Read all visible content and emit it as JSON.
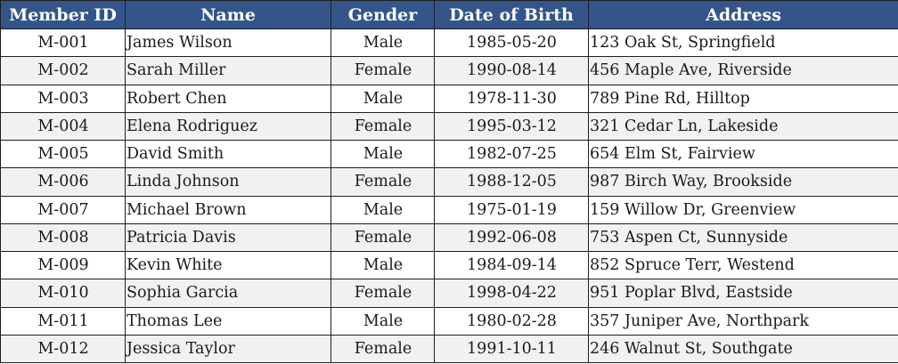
{
  "table": {
    "columns": [
      "Member ID",
      "Name",
      "Gender",
      "Date of Birth",
      "Address"
    ],
    "rows": [
      {
        "id": "M-001",
        "name": "James Wilson",
        "gender": "Male",
        "dob": "1985-05-20",
        "address": "123 Oak St, Springfield"
      },
      {
        "id": "M-002",
        "name": "Sarah Miller",
        "gender": "Female",
        "dob": "1990-08-14",
        "address": "456 Maple Ave, Riverside"
      },
      {
        "id": "M-003",
        "name": "Robert Chen",
        "gender": "Male",
        "dob": "1978-11-30",
        "address": "789 Pine Rd, Hilltop"
      },
      {
        "id": "M-004",
        "name": "Elena Rodriguez",
        "gender": "Female",
        "dob": "1995-03-12",
        "address": "321 Cedar Ln, Lakeside"
      },
      {
        "id": "M-005",
        "name": "David Smith",
        "gender": "Male",
        "dob": "1982-07-25",
        "address": "654 Elm St, Fairview"
      },
      {
        "id": "M-006",
        "name": "Linda Johnson",
        "gender": "Female",
        "dob": "1988-12-05",
        "address": "987 Birch Way, Brookside"
      },
      {
        "id": "M-007",
        "name": "Michael Brown",
        "gender": "Male",
        "dob": "1975-01-19",
        "address": "159 Willow Dr, Greenview"
      },
      {
        "id": "M-008",
        "name": "Patricia Davis",
        "gender": "Female",
        "dob": "1992-06-08",
        "address": "753 Aspen Ct, Sunnyside"
      },
      {
        "id": "M-009",
        "name": "Kevin White",
        "gender": "Male",
        "dob": "1984-09-14",
        "address": "852 Spruce Terr, Westend"
      },
      {
        "id": "M-010",
        "name": "Sophia Garcia",
        "gender": "Female",
        "dob": "1998-04-22",
        "address": "951 Poplar Blvd, Eastside"
      },
      {
        "id": "M-011",
        "name": "Thomas Lee",
        "gender": "Male",
        "dob": "1980-02-28",
        "address": "357 Juniper Ave, Northpark"
      },
      {
        "id": "M-012",
        "name": "Jessica Taylor",
        "gender": "Female",
        "dob": "1991-10-11",
        "address": "246 Walnut St, Southgate"
      }
    ]
  },
  "colors": {
    "header_bg": "#34558a",
    "header_text": "#ffffff",
    "row_alt_bg": "#f1f1f1",
    "border": "#1e1e1e"
  }
}
